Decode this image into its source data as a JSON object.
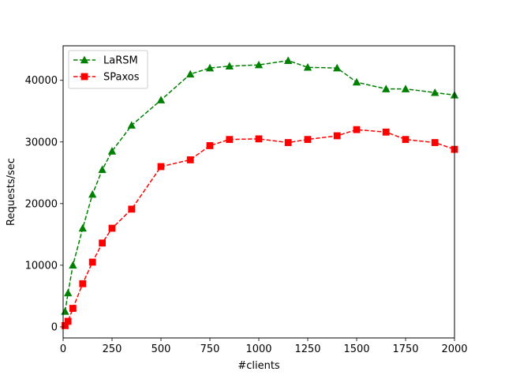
{
  "chart_data": {
    "type": "line",
    "xlabel": "#clients",
    "ylabel": "Requests/sec",
    "xlim": [
      0,
      2000
    ],
    "ylim": [
      -1800,
      45600
    ],
    "x_ticks": [
      0,
      250,
      500,
      750,
      1000,
      1250,
      1500,
      1750,
      2000
    ],
    "y_ticks": [
      0,
      10000,
      20000,
      30000,
      40000
    ],
    "grid": false,
    "legend_position": "top-left",
    "series": [
      {
        "name": "LaRSM",
        "color": "#008000",
        "marker": "triangle",
        "line_style": "dashed",
        "x": [
          10,
          25,
          50,
          100,
          150,
          200,
          250,
          350,
          500,
          650,
          750,
          850,
          1000,
          1150,
          1250,
          1400,
          1500,
          1650,
          1750,
          1900,
          2000
        ],
        "y": [
          2500,
          5500,
          10000,
          16000,
          21500,
          25500,
          28500,
          32700,
          36800,
          41000,
          42000,
          42300,
          42500,
          43200,
          42100,
          42000,
          39700,
          38600,
          38600,
          38000,
          37600
        ]
      },
      {
        "name": "SPaxos",
        "color": "#ff0000",
        "marker": "square",
        "line_style": "dashed",
        "x": [
          10,
          25,
          50,
          100,
          150,
          200,
          250,
          350,
          500,
          650,
          750,
          850,
          1000,
          1150,
          1250,
          1400,
          1500,
          1650,
          1750,
          1900,
          2000
        ],
        "y": [
          200,
          900,
          3000,
          7000,
          10500,
          13600,
          16000,
          19100,
          26000,
          27100,
          29400,
          30400,
          30500,
          29900,
          30400,
          31000,
          32000,
          31600,
          30400,
          29900,
          28800
        ]
      }
    ]
  }
}
